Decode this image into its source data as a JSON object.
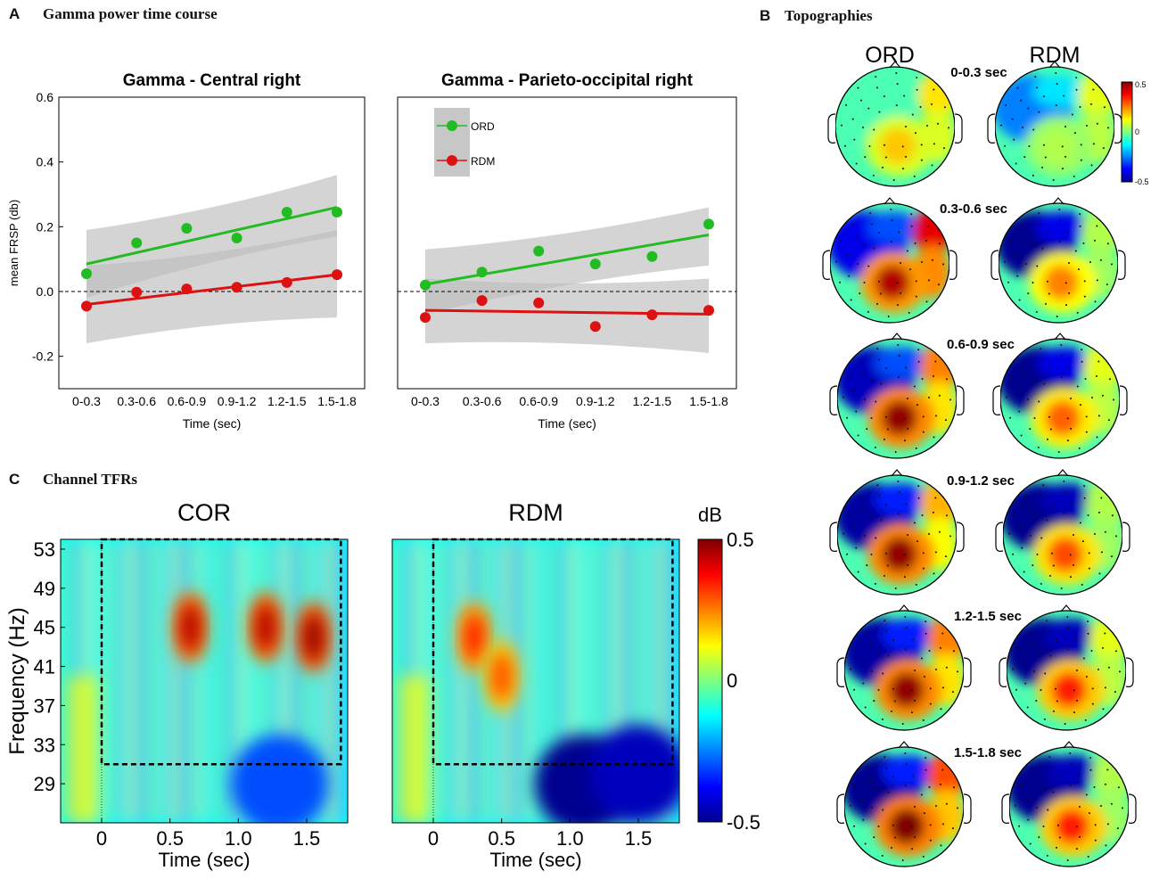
{
  "figure": {
    "panel_a": {
      "letter": "A",
      "title": "Gamma power time course"
    },
    "panel_b": {
      "letter": "B",
      "title": "Topographies"
    },
    "panel_c": {
      "letter": "C",
      "title": "Channel TFRs"
    }
  },
  "colors": {
    "ord": "#22bb22",
    "rdm": "#dd1111",
    "band": "#bdbdbd",
    "axis": "#000000"
  },
  "chart_data": [
    {
      "type": "scatter",
      "title": "Gamma - Central right",
      "xlabel": "Time (sec)",
      "ylabel": "mean FRSP (db)",
      "categories": [
        "0-0.3",
        "0.3-0.6",
        "0.6-0.9",
        "0.9-1.2",
        "1.2-1.5",
        "1.5-1.8"
      ],
      "ylim": [
        -0.3,
        0.6
      ],
      "yticks": [
        -0.2,
        0.0,
        0.2,
        0.4,
        0.6
      ],
      "ytick_labels": [
        "-0.2",
        "0.0",
        "0.2",
        "0.4",
        "0.6"
      ],
      "reference_line": 0,
      "series": [
        {
          "name": "ORD",
          "color": "#22bb22",
          "values": [
            0.055,
            0.15,
            0.195,
            0.165,
            0.245,
            0.245
          ],
          "fit": [
            0.085,
            0.26
          ],
          "band_lo": [
            -0.02,
            0.17
          ],
          "band_hi": [
            0.19,
            0.36
          ]
        },
        {
          "name": "RDM",
          "color": "#dd1111",
          "values": [
            -0.045,
            -0.002,
            0.008,
            0.013,
            0.028,
            0.052
          ],
          "fit": [
            -0.04,
            0.052
          ],
          "band_lo": [
            -0.16,
            -0.08
          ],
          "band_hi": [
            0.08,
            0.19
          ]
        }
      ]
    },
    {
      "type": "scatter",
      "title": "Gamma - Parieto-occipital right",
      "xlabel": "Time (sec)",
      "ylabel": "",
      "categories": [
        "0-0.3",
        "0.3-0.6",
        "0.6-0.9",
        "0.9-1.2",
        "1.2-1.5",
        "1.5-1.8"
      ],
      "ylim": [
        -0.3,
        0.6
      ],
      "reference_line": 0,
      "legend": {
        "position": "top-left",
        "entries": [
          "ORD",
          "RDM"
        ]
      },
      "series": [
        {
          "name": "ORD",
          "color": "#22bb22",
          "values": [
            0.02,
            0.06,
            0.125,
            0.085,
            0.108,
            0.208
          ],
          "fit": [
            0.022,
            0.175
          ],
          "band_lo": [
            -0.07,
            0.08
          ],
          "band_hi": [
            0.13,
            0.26
          ]
        },
        {
          "name": "RDM",
          "color": "#dd1111",
          "values": [
            -0.08,
            -0.028,
            -0.035,
            -0.108,
            -0.072,
            -0.058
          ],
          "fit": [
            -0.058,
            -0.07
          ],
          "band_lo": [
            -0.16,
            -0.19
          ],
          "band_hi": [
            0.04,
            0.04
          ]
        }
      ]
    },
    {
      "type": "heatmap",
      "title": "COR",
      "xlabel": "Time (sec)",
      "ylabel": "Frequency (Hz)",
      "xlim": [
        -0.3,
        1.8
      ],
      "xticks": [
        0,
        0.5,
        1.0,
        1.5
      ],
      "xtick_labels": [
        "0",
        "0.5",
        "1.0",
        "1.5"
      ],
      "ylim": [
        25,
        54
      ],
      "yticks": [
        53,
        49,
        45,
        41,
        37,
        33,
        29
      ],
      "ytick_labels": [
        "53",
        "49",
        "45",
        "41",
        "37",
        "33",
        "29"
      ],
      "window": {
        "t0": 0,
        "t1": 1.75,
        "f0": 31,
        "f1": 54
      },
      "hotspots": [
        {
          "t": 0.65,
          "f": 45,
          "amp": 0.45
        },
        {
          "t": 1.2,
          "f": 45,
          "amp": 0.45
        },
        {
          "t": 1.55,
          "f": 44,
          "amp": 0.48
        }
      ],
      "coldspots": [
        {
          "t": 1.3,
          "f": 29,
          "amp": -0.3
        }
      ]
    },
    {
      "type": "heatmap",
      "title": "RDM",
      "xlabel": "Time (sec)",
      "ylabel": "",
      "xlim": [
        -0.3,
        1.8
      ],
      "xticks": [
        0,
        0.5,
        1.0,
        1.5
      ],
      "xtick_labels": [
        "0",
        "0.5",
        "1.0",
        "1.5"
      ],
      "ylim": [
        25,
        54
      ],
      "window": {
        "t0": 0,
        "t1": 1.75,
        "f0": 31,
        "f1": 54
      },
      "hotspots": [
        {
          "t": 0.3,
          "f": 44,
          "amp": 0.35
        },
        {
          "t": 0.5,
          "f": 40,
          "amp": 0.3
        }
      ],
      "coldspots": [
        {
          "t": 1.1,
          "f": 29,
          "amp": -0.5
        },
        {
          "t": 1.5,
          "f": 30,
          "amp": -0.45
        }
      ]
    }
  ],
  "colorbar": {
    "unit": "dB",
    "max_label": "0.5",
    "mid_label": "0",
    "min_label": "-0.5"
  },
  "topographies": {
    "col_labels": [
      "ORD",
      "RDM"
    ],
    "colorbar": {
      "max_label": "0.5",
      "mid_label": "0",
      "min_label": "-0.5"
    },
    "rows": [
      {
        "label": "0-0.3 sec",
        "ord": {
          "parietal": 0.18,
          "frontal_left": -0.05,
          "frontal_right": 0.15,
          "blue_band": -0.05
        },
        "rdm": {
          "parietal": 0.05,
          "frontal_left": -0.25,
          "frontal_right": 0.1,
          "blue_band": -0.15
        }
      },
      {
        "label": "0.3-0.6 sec",
        "ord": {
          "parietal": 0.45,
          "frontal_left": -0.4,
          "frontal_right": 0.4,
          "blue_band": -0.3
        },
        "rdm": {
          "parietal": 0.25,
          "frontal_left": -0.5,
          "frontal_right": 0.05,
          "blue_band": -0.4
        }
      },
      {
        "label": "0.6-0.9 sec",
        "ord": {
          "parietal": 0.48,
          "frontal_left": -0.45,
          "frontal_right": 0.25,
          "blue_band": -0.3
        },
        "rdm": {
          "parietal": 0.28,
          "frontal_left": -0.5,
          "frontal_right": 0.1,
          "blue_band": -0.4
        }
      },
      {
        "label": "0.9-1.2 sec",
        "ord": {
          "parietal": 0.48,
          "frontal_left": -0.48,
          "frontal_right": 0.2,
          "blue_band": -0.35
        },
        "rdm": {
          "parietal": 0.3,
          "frontal_left": -0.5,
          "frontal_right": 0.05,
          "blue_band": -0.45
        }
      },
      {
        "label": "1.2-1.5 sec",
        "ord": {
          "parietal": 0.48,
          "frontal_left": -0.48,
          "frontal_right": 0.25,
          "blue_band": -0.35
        },
        "rdm": {
          "parietal": 0.35,
          "frontal_left": -0.5,
          "frontal_right": 0.1,
          "blue_band": -0.45
        }
      },
      {
        "label": "1.5-1.8 sec",
        "ord": {
          "parietal": 0.5,
          "frontal_left": -0.5,
          "frontal_right": 0.3,
          "blue_band": -0.35
        },
        "rdm": {
          "parietal": 0.35,
          "frontal_left": -0.5,
          "frontal_right": 0.05,
          "blue_band": -0.45
        }
      }
    ]
  }
}
